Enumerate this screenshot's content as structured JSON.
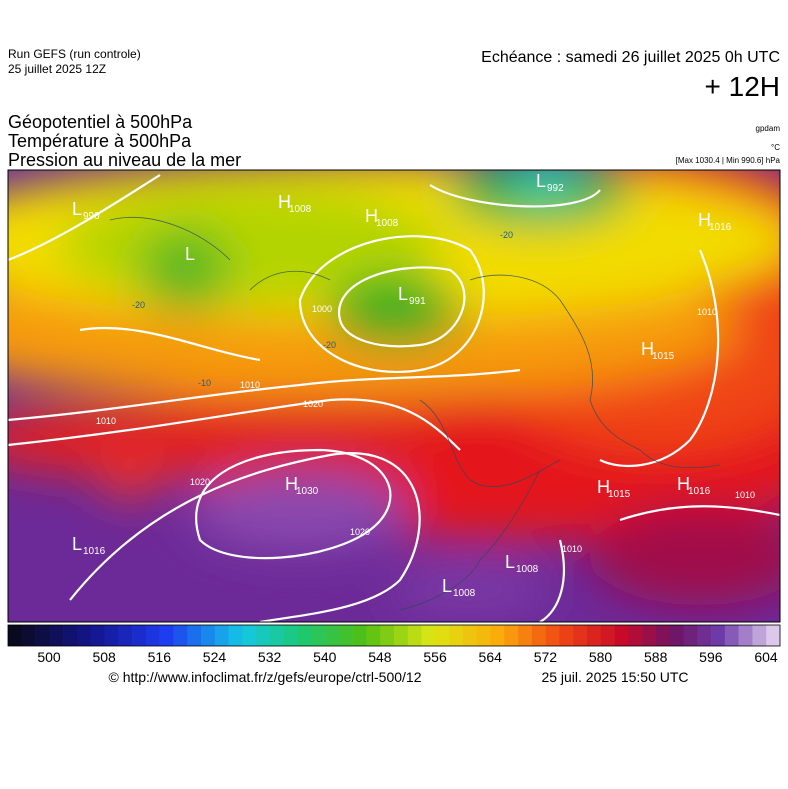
{
  "header": {
    "run": "Run GEFS (run controle)",
    "run_date": "25 juillet 2025 12Z",
    "valid": "Echéance : samedi 26 juillet 2025 0h UTC",
    "lead": "+ 12H"
  },
  "layers": [
    "Géopotentiel à 500hPa",
    "Température à 500hPa",
    "Pression au niveau de la mer"
  ],
  "units": {
    "geopotential": "gpdam",
    "temperature": "°C",
    "pressure": "[Max 1030.4 | Min 990.6] hPa"
  },
  "centers": [
    {
      "symbol": "L",
      "value": 990
    },
    {
      "symbol": "H",
      "value": 1008
    },
    {
      "symbol": "H",
      "value": 1008
    },
    {
      "symbol": "L",
      "value": 992
    },
    {
      "symbol": "L"
    },
    {
      "symbol": "H",
      "value": 1016
    },
    {
      "symbol": "L",
      "value": 991
    },
    {
      "symbol": "H",
      "value": 1015
    },
    {
      "symbol": "H",
      "value": 1030
    },
    {
      "symbol": "L",
      "value": 1016
    },
    {
      "symbol": "H",
      "value": 1015
    },
    {
      "symbol": "H",
      "value": 1016
    },
    {
      "symbol": "L",
      "value": 1008
    },
    {
      "symbol": "L",
      "value": 1008
    }
  ],
  "isobar_labels": [
    1010,
    1010,
    1020,
    1020,
    1020,
    1010,
    1010,
    1010,
    1000
  ],
  "temperature_labels": [
    -20,
    -20,
    -10,
    -20
  ],
  "colorbar": {
    "ticks": [
      500,
      508,
      516,
      524,
      532,
      540,
      548,
      556,
      564,
      572,
      580,
      588,
      596,
      604
    ]
  },
  "footer": {
    "source": "© http://www.infoclimat.fr/z/gefs/europe/ctrl-500/12",
    "generated": "25 juil. 2025 15:50 UTC"
  }
}
